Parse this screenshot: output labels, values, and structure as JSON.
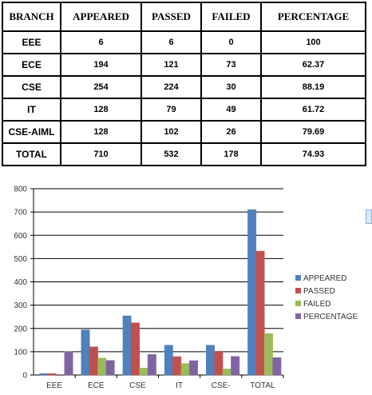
{
  "table": {
    "headers": [
      "BRANCH",
      "APPEARED",
      "PASSED",
      "FAILED",
      "PERCENTAGE"
    ],
    "rows": [
      [
        "EEE",
        "6",
        "6",
        "0",
        "100"
      ],
      [
        "ECE",
        "194",
        "121",
        "73",
        "62.37"
      ],
      [
        "CSE",
        "254",
        "224",
        "30",
        "88.19"
      ],
      [
        "IT",
        "128",
        "79",
        "49",
        "61.72"
      ],
      [
        "CSE-AIML",
        "128",
        "102",
        "26",
        "79.69"
      ],
      [
        "TOTAL",
        "710",
        "532",
        "178",
        "74.93"
      ]
    ]
  },
  "chart_data": {
    "type": "bar",
    "categories": [
      "EEE",
      "ECE",
      "CSE",
      "IT",
      "CSE-",
      "TOTAL"
    ],
    "series": [
      {
        "name": "APPEARED",
        "values": [
          6,
          194,
          254,
          128,
          128,
          710
        ],
        "color": "#4f81bd"
      },
      {
        "name": "PASSED",
        "values": [
          6,
          121,
          224,
          79,
          102,
          532
        ],
        "color": "#c0504d"
      },
      {
        "name": "FAILED",
        "values": [
          0,
          73,
          30,
          49,
          26,
          178
        ],
        "color": "#9bbb59"
      },
      {
        "name": "PERCENTAGE",
        "values": [
          100,
          62.37,
          88.19,
          61.72,
          79.69,
          74.93
        ],
        "color": "#8064a2"
      }
    ],
    "yticks": [
      0,
      100,
      200,
      300,
      400,
      500,
      600,
      700,
      800
    ],
    "ylim": [
      0,
      800
    ],
    "grid": true,
    "legend": "right"
  }
}
